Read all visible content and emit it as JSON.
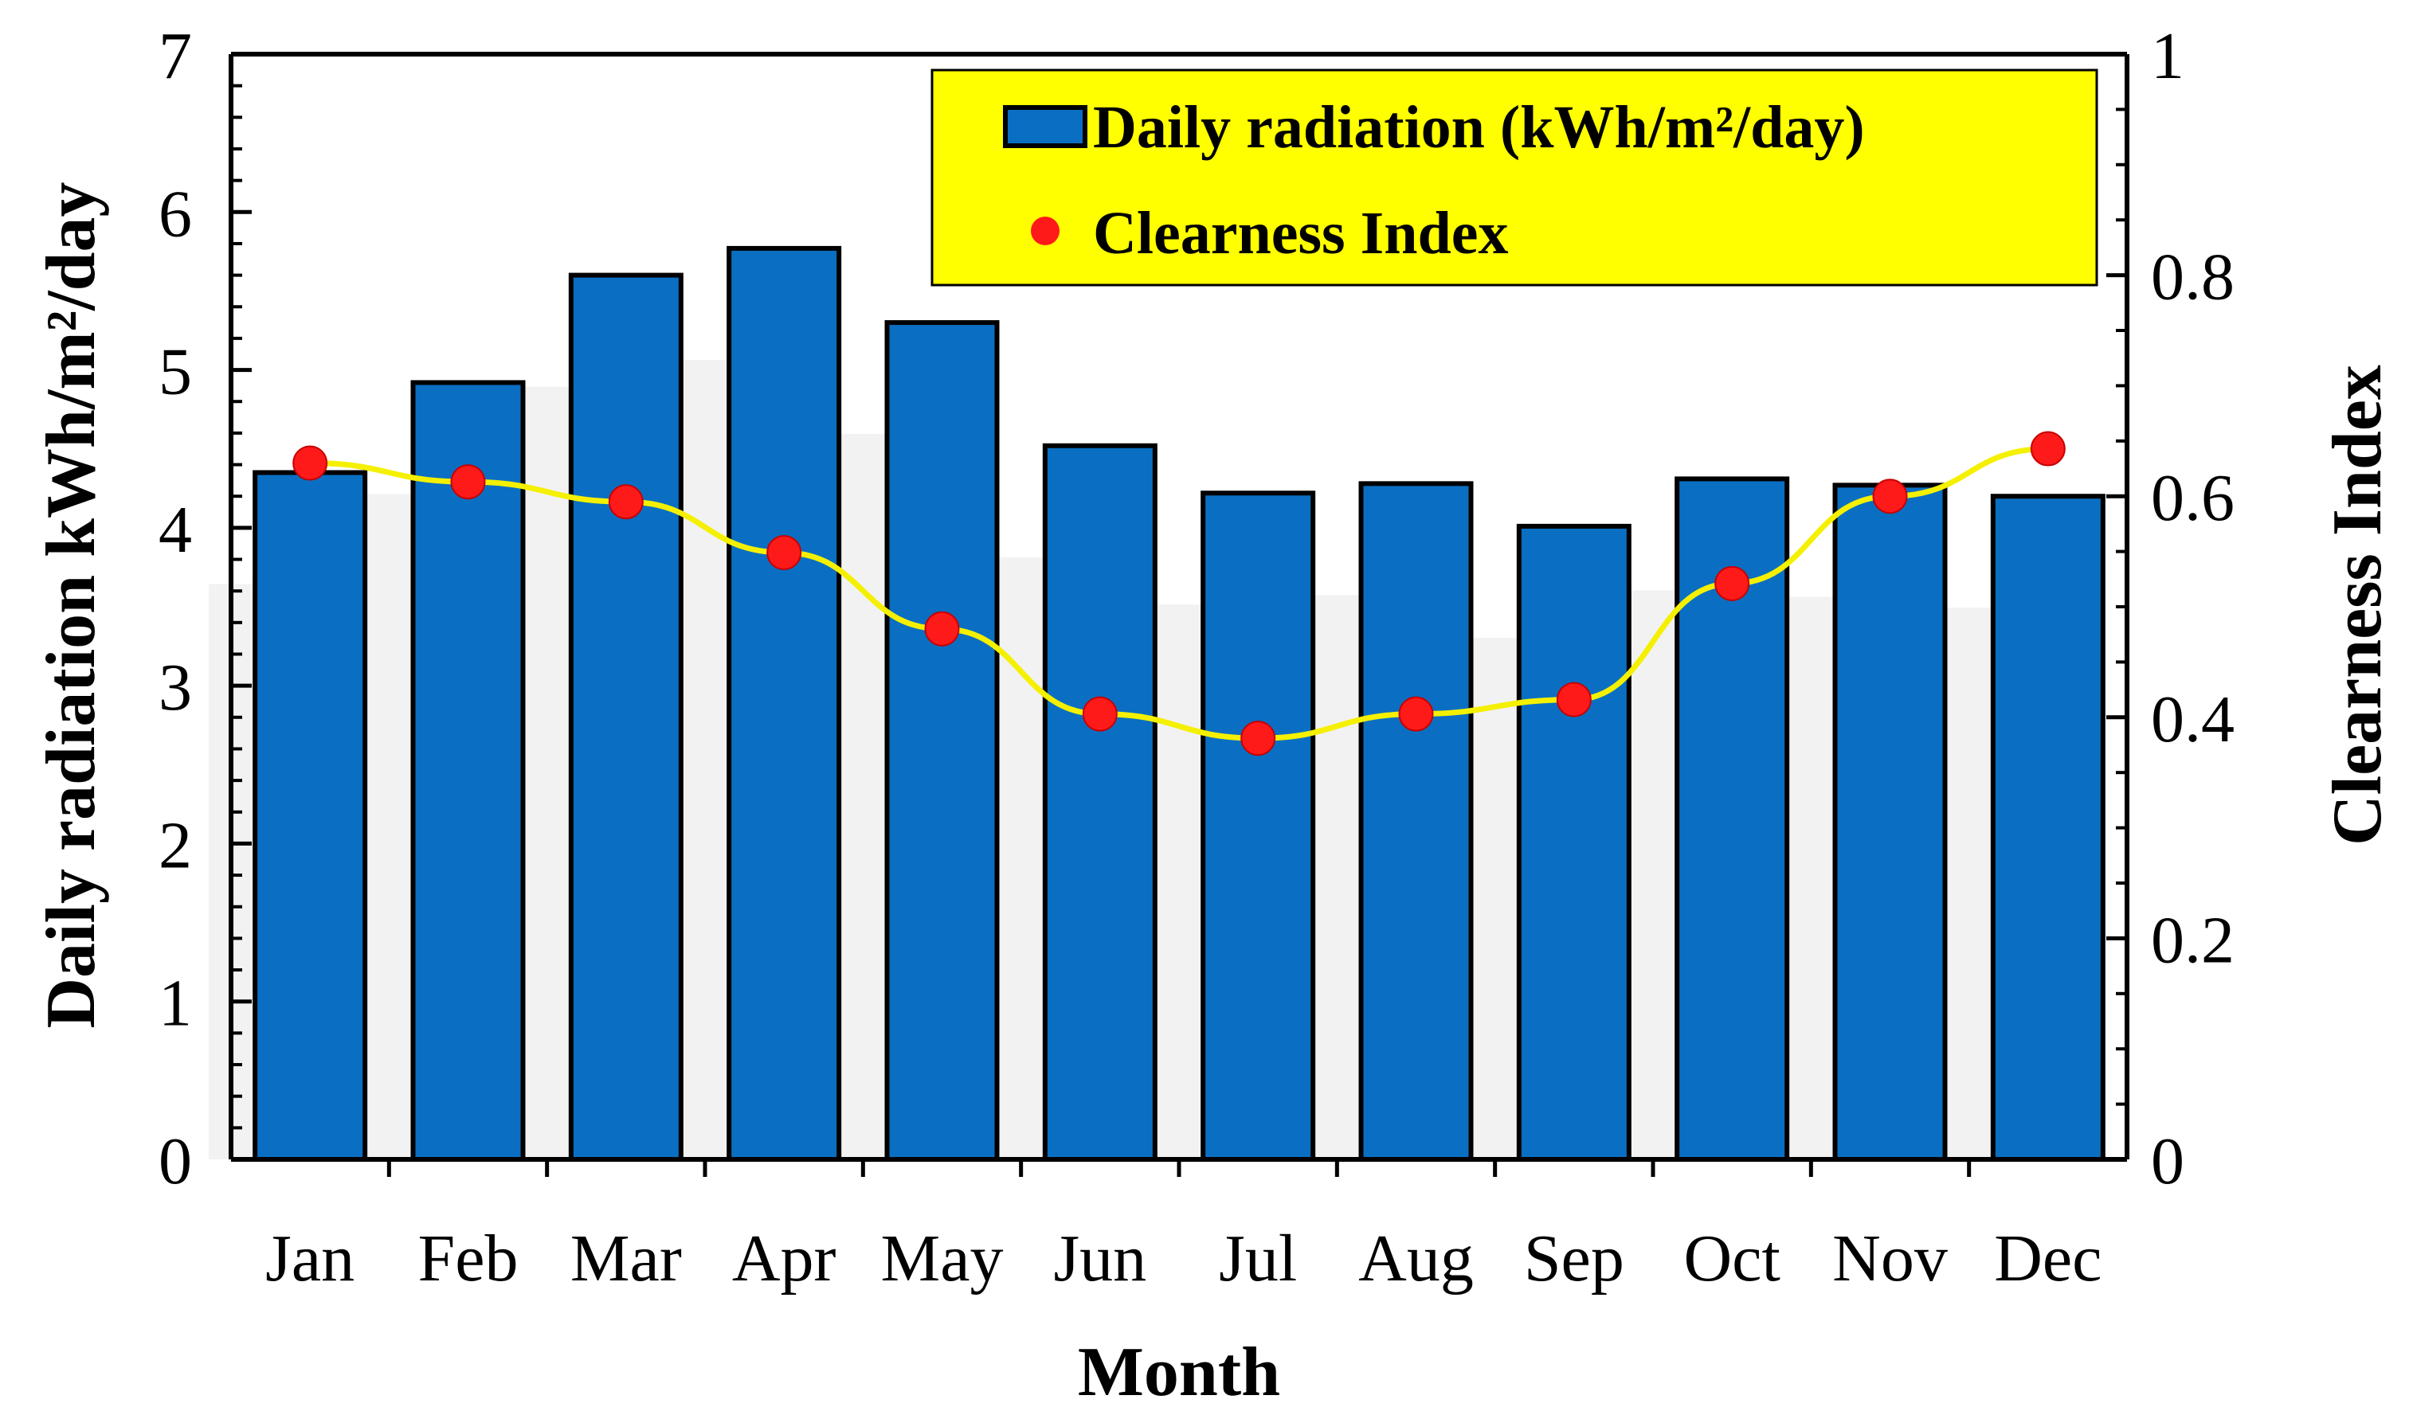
{
  "chart_data": {
    "type": "bar+line",
    "categories": [
      "Jan",
      "Feb",
      "Mar",
      "Apr",
      "May",
      "Jun",
      "Jul",
      "Aug",
      "Sep",
      "Oct",
      "Nov",
      "Dec"
    ],
    "series": [
      {
        "name": "Daily radiation (kWh/m²/day)",
        "type": "bar",
        "axis": "left",
        "color": "#0a6fc2",
        "values": [
          4.35,
          4.92,
          5.6,
          5.77,
          5.3,
          4.52,
          4.22,
          4.28,
          4.01,
          4.31,
          4.27,
          4.2
        ]
      },
      {
        "name": "Clearness Index",
        "type": "line",
        "axis": "right",
        "line_color": "#f4f000",
        "marker_color": "#ff1a1a",
        "values": [
          0.63,
          0.613,
          0.595,
          0.549,
          0.48,
          0.403,
          0.381,
          0.403,
          0.416,
          0.521,
          0.6,
          0.643
        ]
      }
    ],
    "xlabel": "Month",
    "ylabel_left": "Daily radiation kWh/m²/day",
    "ylabel_right": "Clearness Index",
    "ylim_left": [
      0,
      7
    ],
    "ylim_right": [
      0,
      1
    ],
    "yticks_left": [
      "0",
      "1",
      "2",
      "3",
      "4",
      "5",
      "6",
      "7"
    ],
    "yticks_right": [
      "0",
      "0.2",
      "0.4",
      "0.6",
      "0.8",
      "1"
    ],
    "legend": {
      "position": "top-right",
      "background": "#ffff00",
      "items": [
        "Daily radiation (kWh/m²/day)",
        "Clearness Index"
      ]
    },
    "grid": false
  }
}
